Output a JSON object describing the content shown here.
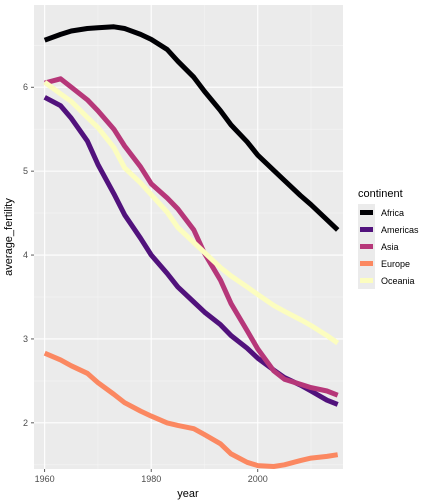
{
  "chart_data": {
    "type": "line",
    "xlabel": "year",
    "ylabel": "average_fertility",
    "xlim": [
      1958,
      2016
    ],
    "ylim": [
      1.45,
      6.98
    ],
    "x_ticks": [
      1960,
      1980,
      2000
    ],
    "y_ticks": [
      2,
      3,
      4,
      5,
      6
    ],
    "grid": true,
    "legend": {
      "title": "continent",
      "position": "right"
    },
    "series": [
      {
        "name": "Africa",
        "color": "#000004",
        "x": [
          1960,
          1963,
          1965,
          1968,
          1970,
          1973,
          1975,
          1978,
          1980,
          1983,
          1985,
          1988,
          1990,
          1993,
          1995,
          1998,
          2000,
          2003,
          2005,
          2008,
          2010,
          2013,
          2015
        ],
        "y": [
          6.56,
          6.63,
          6.67,
          6.7,
          6.71,
          6.72,
          6.7,
          6.63,
          6.57,
          6.45,
          6.31,
          6.12,
          5.95,
          5.72,
          5.55,
          5.35,
          5.19,
          5.01,
          4.89,
          4.71,
          4.6,
          4.42,
          4.3
        ]
      },
      {
        "name": "Americas",
        "color": "#51127C",
        "x": [
          1960,
          1963,
          1965,
          1968,
          1970,
          1973,
          1975,
          1978,
          1980,
          1983,
          1985,
          1988,
          1990,
          1993,
          1995,
          1998,
          2000,
          2003,
          2005,
          2008,
          2010,
          2013,
          2015
        ],
        "y": [
          5.88,
          5.78,
          5.63,
          5.36,
          5.08,
          4.73,
          4.48,
          4.2,
          4.0,
          3.78,
          3.62,
          3.44,
          3.32,
          3.17,
          3.04,
          2.89,
          2.77,
          2.63,
          2.54,
          2.45,
          2.38,
          2.27,
          2.22
        ]
      },
      {
        "name": "Asia",
        "color": "#B63779",
        "x": [
          1960,
          1963,
          1965,
          1968,
          1970,
          1973,
          1975,
          1978,
          1980,
          1983,
          1985,
          1988,
          1990,
          1993,
          1995,
          1998,
          2000,
          2003,
          2005,
          2008,
          2010,
          2013,
          2015
        ],
        "y": [
          6.05,
          6.1,
          6.0,
          5.85,
          5.72,
          5.5,
          5.3,
          5.05,
          4.85,
          4.68,
          4.55,
          4.3,
          4.02,
          3.7,
          3.42,
          3.1,
          2.88,
          2.62,
          2.52,
          2.46,
          2.42,
          2.38,
          2.33
        ]
      },
      {
        "name": "Europe",
        "color": "#FB8861",
        "x": [
          1960,
          1963,
          1965,
          1968,
          1970,
          1973,
          1975,
          1978,
          1980,
          1983,
          1985,
          1988,
          1990,
          1993,
          1995,
          1998,
          2000,
          2003,
          2005,
          2008,
          2010,
          2013,
          2015
        ],
        "y": [
          2.83,
          2.75,
          2.68,
          2.59,
          2.48,
          2.34,
          2.24,
          2.14,
          2.08,
          2.0,
          1.97,
          1.93,
          1.86,
          1.75,
          1.63,
          1.53,
          1.49,
          1.48,
          1.5,
          1.55,
          1.58,
          1.6,
          1.62
        ]
      },
      {
        "name": "Oceania",
        "color": "#FCFDBF",
        "x": [
          1960,
          1963,
          1965,
          1968,
          1970,
          1973,
          1975,
          1978,
          1980,
          1983,
          1985,
          1988,
          1990,
          1993,
          1995,
          1998,
          2000,
          2003,
          2005,
          2008,
          2010,
          2013,
          2015
        ],
        "y": [
          6.06,
          5.92,
          5.83,
          5.64,
          5.52,
          5.28,
          5.04,
          4.86,
          4.72,
          4.51,
          4.33,
          4.15,
          4.03,
          3.85,
          3.75,
          3.62,
          3.53,
          3.4,
          3.33,
          3.23,
          3.16,
          3.04,
          2.95
        ]
      }
    ]
  }
}
